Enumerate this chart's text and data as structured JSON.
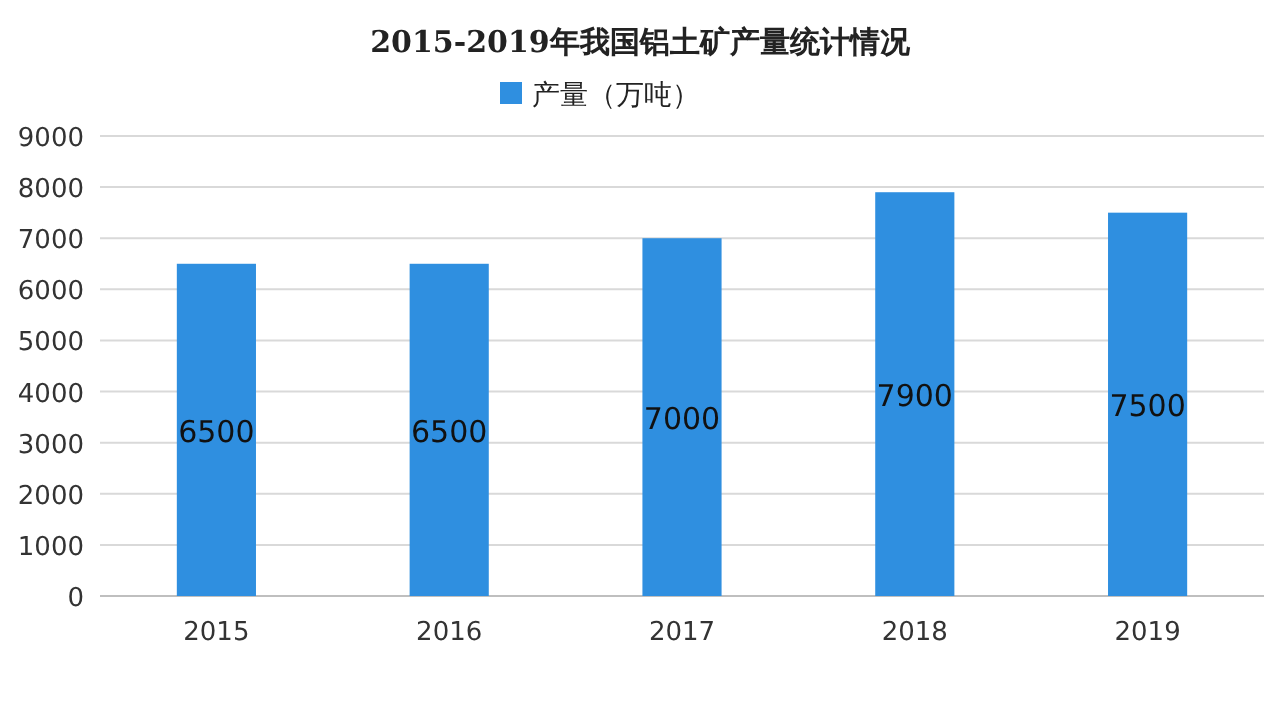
{
  "chart_data": {
    "type": "bar",
    "title": "2015-2019年我国铝土矿产量统计情况",
    "categories": [
      "2015",
      "2016",
      "2017",
      "2018",
      "2019"
    ],
    "series": [
      {
        "name": "产量（万吨）",
        "color": "#2f8fe0",
        "values": [
          6500,
          6500,
          7000,
          7900,
          7500
        ]
      }
    ],
    "ylim": [
      0,
      9000
    ],
    "yticks": [
      0,
      1000,
      2000,
      3000,
      4000,
      5000,
      6000,
      7000,
      8000,
      9000
    ],
    "grid": "y",
    "legend": "top",
    "data_labels": true
  }
}
